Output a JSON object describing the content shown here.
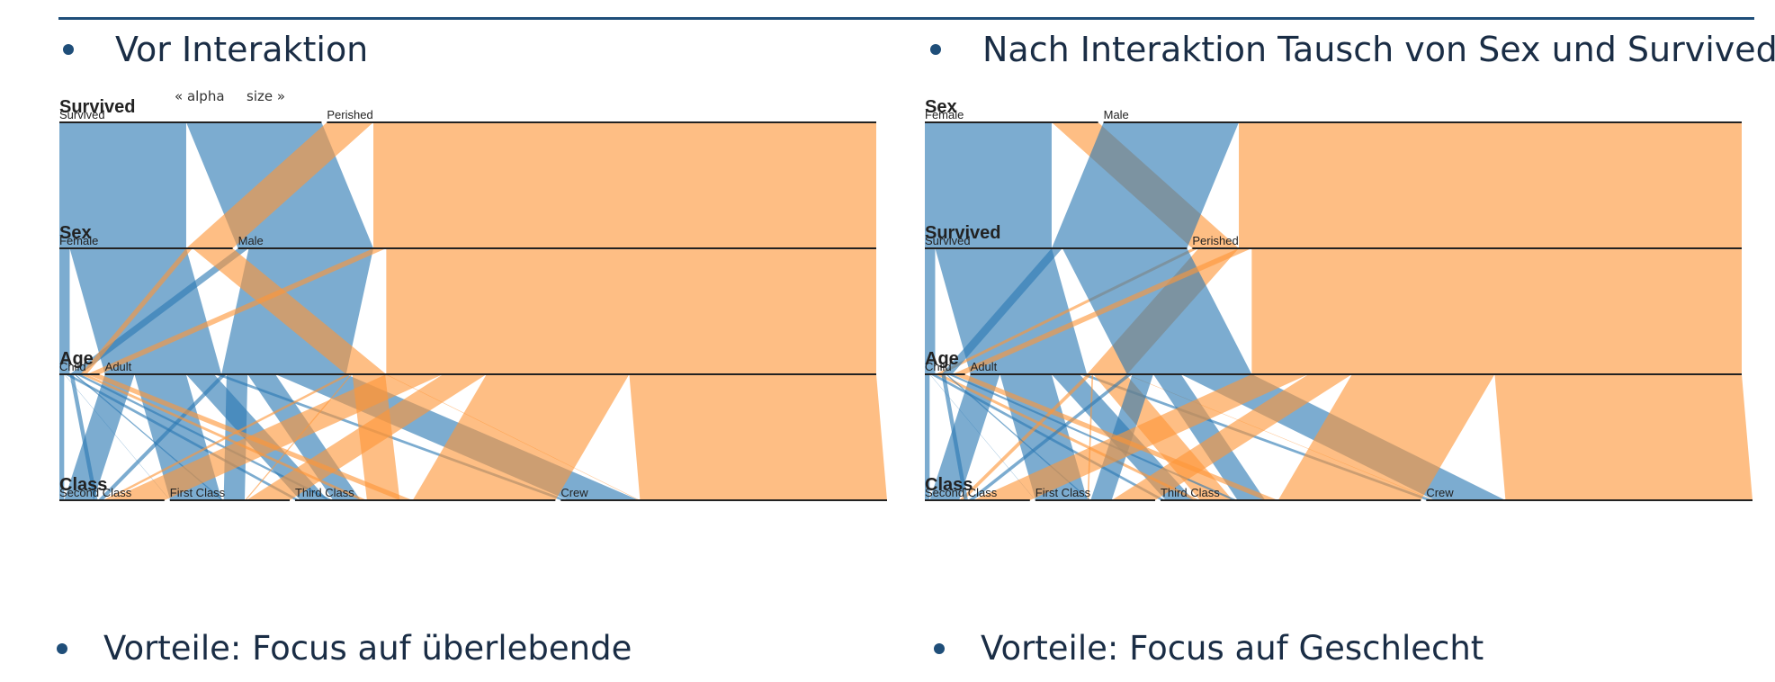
{
  "slide": {
    "left_heading": "Vor Interaktion",
    "right_heading": "Nach Interaktion Tausch von Sex und Survived",
    "left_footer": "Vorteile: Focus auf überlebende",
    "right_footer": "Vorteile: Focus auf Geschlecht"
  },
  "controls": {
    "alpha_label": "« alpha",
    "size_label": "size »"
  },
  "colors": {
    "survived": "#2b79b3",
    "perished": "#fd9639",
    "axis": "#222222",
    "background": "#ffffff"
  },
  "chart_data": [
    {
      "type": "parallel-sets",
      "title": "",
      "color_dimension": "Survived",
      "dimensions": [
        {
          "name": "Survived",
          "categories": [
            "Survived",
            "Perished"
          ]
        },
        {
          "name": "Sex",
          "categories": [
            "Female",
            "Male"
          ]
        },
        {
          "name": "Age",
          "categories": [
            "Child",
            "Adult"
          ]
        },
        {
          "name": "Class",
          "categories": [
            "Second Class",
            "First Class",
            "Third Class",
            "Crew"
          ]
        }
      ],
      "records": [
        {
          "Survived": "Survived",
          "Sex": "Female",
          "Age": "Child",
          "Class": "First Class",
          "count": 1
        },
        {
          "Survived": "Survived",
          "Sex": "Female",
          "Age": "Child",
          "Class": "Second Class",
          "count": 13
        },
        {
          "Survived": "Survived",
          "Sex": "Female",
          "Age": "Child",
          "Class": "Third Class",
          "count": 14
        },
        {
          "Survived": "Survived",
          "Sex": "Female",
          "Age": "Adult",
          "Class": "First Class",
          "count": 140
        },
        {
          "Survived": "Survived",
          "Sex": "Female",
          "Age": "Adult",
          "Class": "Second Class",
          "count": 80
        },
        {
          "Survived": "Survived",
          "Sex": "Female",
          "Age": "Adult",
          "Class": "Third Class",
          "count": 76
        },
        {
          "Survived": "Survived",
          "Sex": "Female",
          "Age": "Adult",
          "Class": "Crew",
          "count": 20
        },
        {
          "Survived": "Survived",
          "Sex": "Male",
          "Age": "Child",
          "Class": "First Class",
          "count": 5
        },
        {
          "Survived": "Survived",
          "Sex": "Male",
          "Age": "Child",
          "Class": "Second Class",
          "count": 11
        },
        {
          "Survived": "Survived",
          "Sex": "Male",
          "Age": "Child",
          "Class": "Third Class",
          "count": 13
        },
        {
          "Survived": "Survived",
          "Sex": "Male",
          "Age": "Adult",
          "Class": "First Class",
          "count": 57
        },
        {
          "Survived": "Survived",
          "Sex": "Male",
          "Age": "Adult",
          "Class": "Second Class",
          "count": 14
        },
        {
          "Survived": "Survived",
          "Sex": "Male",
          "Age": "Adult",
          "Class": "Third Class",
          "count": 75
        },
        {
          "Survived": "Survived",
          "Sex": "Male",
          "Age": "Adult",
          "Class": "Crew",
          "count": 192
        },
        {
          "Survived": "Perished",
          "Sex": "Female",
          "Age": "Child",
          "Class": "Third Class",
          "count": 17
        },
        {
          "Survived": "Perished",
          "Sex": "Female",
          "Age": "Adult",
          "Class": "First Class",
          "count": 4
        },
        {
          "Survived": "Perished",
          "Sex": "Female",
          "Age": "Adult",
          "Class": "Second Class",
          "count": 13
        },
        {
          "Survived": "Perished",
          "Sex": "Female",
          "Age": "Adult",
          "Class": "Third Class",
          "count": 89
        },
        {
          "Survived": "Perished",
          "Sex": "Female",
          "Age": "Adult",
          "Class": "Crew",
          "count": 3
        },
        {
          "Survived": "Perished",
          "Sex": "Male",
          "Age": "Child",
          "Class": "Third Class",
          "count": 35
        },
        {
          "Survived": "Perished",
          "Sex": "Male",
          "Age": "Adult",
          "Class": "First Class",
          "count": 118
        },
        {
          "Survived": "Perished",
          "Sex": "Male",
          "Age": "Adult",
          "Class": "Second Class",
          "count": 154
        },
        {
          "Survived": "Perished",
          "Sex": "Male",
          "Age": "Adult",
          "Class": "Third Class",
          "count": 387
        },
        {
          "Survived": "Perished",
          "Sex": "Male",
          "Age": "Adult",
          "Class": "Crew",
          "count": 670
        }
      ]
    },
    {
      "type": "parallel-sets",
      "title": "",
      "color_dimension": "Survived",
      "dimensions": [
        {
          "name": "Sex",
          "categories": [
            "Female",
            "Male"
          ]
        },
        {
          "name": "Survived",
          "categories": [
            "Survived",
            "Perished"
          ]
        },
        {
          "name": "Age",
          "categories": [
            "Child",
            "Adult"
          ]
        },
        {
          "name": "Class",
          "categories": [
            "Second Class",
            "First Class",
            "Third Class",
            "Crew"
          ]
        }
      ],
      "records_from": "same records as chart 1"
    }
  ]
}
